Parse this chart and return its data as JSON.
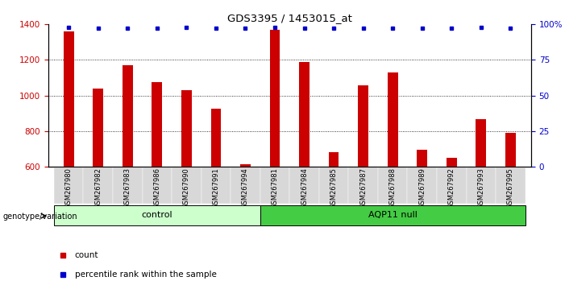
{
  "title": "GDS3395 / 1453015_at",
  "samples": [
    "GSM267980",
    "GSM267982",
    "GSM267983",
    "GSM267986",
    "GSM267990",
    "GSM267991",
    "GSM267994",
    "GSM267981",
    "GSM267984",
    "GSM267985",
    "GSM267987",
    "GSM267988",
    "GSM267989",
    "GSM267992",
    "GSM267993",
    "GSM267995"
  ],
  "counts": [
    1360,
    1040,
    1170,
    1075,
    1030,
    925,
    615,
    1370,
    1190,
    680,
    1055,
    1130,
    695,
    650,
    865,
    790
  ],
  "percentile_ranks": [
    98,
    97,
    97,
    97,
    98,
    97,
    97,
    98,
    97,
    97,
    97,
    97,
    97,
    97,
    98,
    97
  ],
  "groups": [
    "control",
    "control",
    "control",
    "control",
    "control",
    "control",
    "control",
    "AQP11 null",
    "AQP11 null",
    "AQP11 null",
    "AQP11 null",
    "AQP11 null",
    "AQP11 null",
    "AQP11 null",
    "AQP11 null",
    "AQP11 null"
  ],
  "control_color": "#ccffcc",
  "aqp11_color": "#44cc44",
  "bar_color": "#cc0000",
  "dot_color": "#0000cc",
  "ylim_left": [
    600,
    1400
  ],
  "ylim_right": [
    0,
    100
  ],
  "yticks_left": [
    600,
    800,
    1000,
    1200,
    1400
  ],
  "yticks_right": [
    0,
    25,
    50,
    75,
    100
  ],
  "grid_values": [
    800,
    1000,
    1200
  ],
  "left_tick_color": "#cc0000",
  "right_tick_color": "#0000cc",
  "label_count": "count",
  "label_percentile": "percentile rank within the sample",
  "group_label": "genotype/variation"
}
